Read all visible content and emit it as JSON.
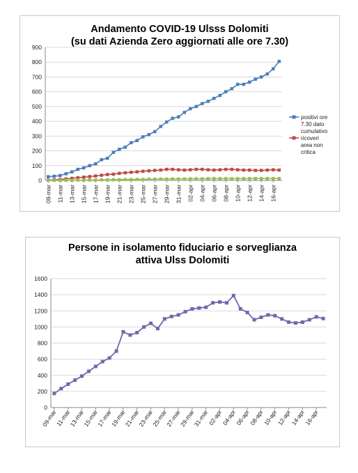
{
  "chart_data": [
    {
      "type": "line",
      "title_line1": "Andamento COVID-19 Ulsss Dolomiti",
      "title_line2": "(su dati Azienda Zero aggiornati alle ore 7.30)",
      "ylim": [
        0,
        900
      ],
      "yticks": [
        "0",
        "100",
        "200",
        "300",
        "400",
        "500",
        "600",
        "700",
        "800",
        "900"
      ],
      "grid": true,
      "legend_position": "right",
      "x": [
        "09-mar",
        "10-mar",
        "11-mar",
        "12-mar",
        "13-mar",
        "14-mar",
        "15-mar",
        "16-mar",
        "17-mar",
        "18-mar",
        "19-mar",
        "20-mar",
        "21-mar",
        "22-mar",
        "23-mar",
        "24-mar",
        "25-mar",
        "26-mar",
        "27-mar",
        "28-mar",
        "29-mar",
        "30-mar",
        "31-mar",
        "01-apr",
        "02-apr",
        "03-apr",
        "04-apr",
        "05-apr",
        "06-apr",
        "07-apr",
        "08-apr",
        "09-apr",
        "10-apr",
        "11-apr",
        "12-apr",
        "13-apr",
        "14-apr",
        "15-apr",
        "16-apr",
        "17-apr"
      ],
      "xtick_labels": [
        "09-mar",
        "11-mar",
        "13-mar",
        "15-mar",
        "17-mar",
        "19-mar",
        "21-mar",
        "23-mar",
        "25-mar",
        "27-mar",
        "29-mar",
        "31-mar",
        "02-apr",
        "04-apr",
        "06-apr",
        "08-apr",
        "10-apr",
        "12-apr",
        "14-apr",
        "16-apr"
      ],
      "series": [
        {
          "name_lines": [
            "positivi ore",
            "7.30 dato",
            "cumulativo"
          ],
          "color": "#4a7ebb",
          "marker": "square",
          "values": [
            25,
            28,
            33,
            45,
            58,
            75,
            85,
            100,
            112,
            140,
            150,
            190,
            210,
            225,
            255,
            270,
            295,
            310,
            330,
            365,
            395,
            420,
            430,
            460,
            485,
            500,
            520,
            535,
            555,
            575,
            600,
            620,
            650,
            650,
            665,
            685,
            700,
            720,
            755,
            805
          ]
        },
        {
          "name_lines": [
            "ricoveri",
            "area non",
            "critica"
          ],
          "color": "#be4b48",
          "marker": "square",
          "values": [
            2,
            4,
            6,
            10,
            14,
            18,
            22,
            26,
            30,
            35,
            40,
            42,
            48,
            52,
            55,
            58,
            62,
            65,
            68,
            70,
            75,
            75,
            72,
            70,
            72,
            75,
            75,
            72,
            70,
            72,
            75,
            75,
            72,
            70,
            70,
            68,
            68,
            70,
            72,
            70
          ]
        },
        {
          "name_lines": [],
          "color": "#9bbb59",
          "marker": "square",
          "values": [
            0,
            0,
            0,
            1,
            1,
            2,
            2,
            3,
            3,
            4,
            4,
            5,
            5,
            6,
            6,
            7,
            7,
            8,
            8,
            9,
            9,
            10,
            10,
            10,
            11,
            11,
            11,
            12,
            12,
            12,
            12,
            12,
            12,
            12,
            12,
            13,
            13,
            13,
            13,
            13
          ]
        }
      ]
    },
    {
      "type": "line",
      "title_line1": "Persone in isolamento fiduciario e sorveglianza",
      "title_line2": "attiva Ulss Dolomiti",
      "ylim": [
        0,
        1600
      ],
      "yticks": [
        "0",
        "200",
        "400",
        "600",
        "800",
        "1000",
        "1200",
        "1400",
        "1600"
      ],
      "grid": true,
      "x": [
        "09-mar",
        "10-mar",
        "11-mar",
        "12-mar",
        "13-mar",
        "14-mar",
        "15-mar",
        "16-mar",
        "17-mar",
        "18-mar",
        "19-mar",
        "20-mar",
        "21-mar",
        "22-mar",
        "23-mar",
        "24-mar",
        "25-mar",
        "26-mar",
        "27-mar",
        "28-mar",
        "29-mar",
        "30-mar",
        "31-mar",
        "01-apr",
        "02-apr",
        "03-apr",
        "04-apr",
        "05-apr",
        "06-apr",
        "07-apr",
        "08-apr",
        "09-apr",
        "10-apr",
        "11-apr",
        "12-apr",
        "13-apr",
        "14-apr",
        "15-apr",
        "16-apr",
        "17-apr"
      ],
      "xtick_labels": [
        "09-mar",
        "11-mar",
        "13-mar",
        "15-mar",
        "17-mar",
        "19-mar",
        "21-mar",
        "23-mar",
        "25-mar",
        "27-mar",
        "29-mar",
        "31-mar",
        "02-apr",
        "04-apr",
        "06-apr",
        "08-apr",
        "10-apr",
        "12-apr",
        "14-apr",
        "16-apr"
      ],
      "series": [
        {
          "color": "#7367a9",
          "marker": "square",
          "values": [
            175,
            235,
            290,
            340,
            390,
            450,
            510,
            570,
            615,
            700,
            940,
            900,
            930,
            1000,
            1045,
            980,
            1100,
            1130,
            1150,
            1190,
            1225,
            1235,
            1245,
            1300,
            1310,
            1300,
            1390,
            1225,
            1180,
            1090,
            1120,
            1150,
            1140,
            1100,
            1060,
            1050,
            1060,
            1090,
            1125,
            1105
          ]
        }
      ]
    }
  ]
}
